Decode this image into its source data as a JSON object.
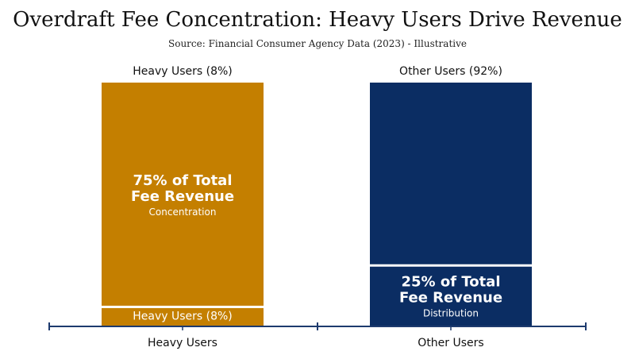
{
  "title": "Overdraft Fee Concentration: Heavy Users Drive Revenue",
  "subtitle": "Source: Financial Consumer Agency Data (2023) - Illustrative",
  "colors": {
    "heavy": "#c47f00",
    "other": "#0b2d63",
    "axis": "#1d3a6e",
    "text": "#111111"
  },
  "chart_data": {
    "type": "bar",
    "categories": [
      "Heavy Users",
      "Other Users"
    ],
    "column_headers": [
      "Heavy Users (8%)",
      "Other Users (92%)"
    ],
    "columns": [
      {
        "category": "Heavy Users",
        "color_key": "heavy",
        "segments": [
          {
            "value": 8,
            "label": "Heavy Users (8%)",
            "sublabel": ""
          },
          {
            "value": 92,
            "label": "75% of Total\nFee Revenue",
            "sublabel": "Concentration"
          }
        ]
      },
      {
        "category": "Other Users",
        "color_key": "other",
        "segments": [
          {
            "value": 25,
            "label": "25% of Total\nFee Revenue",
            "sublabel": "Distribution"
          },
          {
            "value": 75,
            "label": "",
            "sublabel": ""
          }
        ]
      }
    ]
  }
}
